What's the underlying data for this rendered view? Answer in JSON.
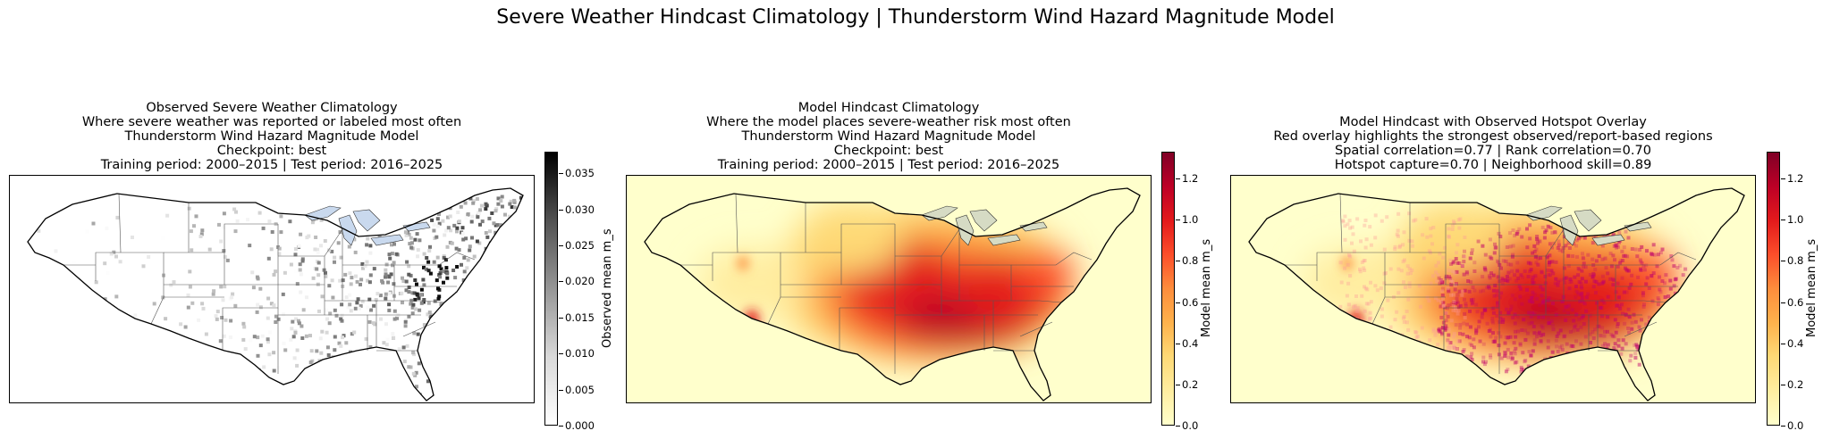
{
  "suptitle": "Severe Weather Hindcast Climatology | Thunderstorm Wind Hazard Magnitude Model",
  "panels": [
    {
      "title_lines": [
        "Observed Severe Weather Climatology",
        "Where severe weather was reported or labeled most often",
        "Thunderstorm Wind Hazard Magnitude Model",
        "Checkpoint: best",
        "Training period: 2000–2015 | Test period: 2016–2025"
      ],
      "colorbar": {
        "label": "Observed mean m_s",
        "cmap": "Greys",
        "range": [
          0.0,
          0.038
        ],
        "ticks": [
          "0.000",
          "0.005",
          "0.010",
          "0.015",
          "0.020",
          "0.025",
          "0.030",
          "0.035"
        ]
      }
    },
    {
      "title_lines": [
        "Model Hindcast Climatology",
        "Where the model places severe-weather risk most often",
        "Thunderstorm Wind Hazard Magnitude Model",
        "Checkpoint: best",
        "Training period: 2000–2015 | Test period: 2016–2025"
      ],
      "colorbar": {
        "label": "Model mean m_s",
        "cmap": "YlOrRd",
        "range": [
          0.0,
          1.33
        ],
        "ticks": [
          "0.0",
          "0.2",
          "0.4",
          "0.6",
          "0.8",
          "1.0",
          "1.2"
        ]
      }
    },
    {
      "title_lines": [
        "Model Hindcast with Observed Hotspot Overlay",
        "Red overlay highlights the strongest observed/report-based regions",
        "Spatial correlation=0.77 | Rank correlation=0.70",
        "Hotspot capture=0.70 | Neighborhood skill=0.89"
      ],
      "colorbar": {
        "label": "Model mean m_s",
        "cmap": "YlOrRd",
        "range": [
          0.0,
          1.33
        ],
        "ticks": [
          "0.0",
          "0.2",
          "0.4",
          "0.6",
          "0.8",
          "1.0",
          "1.2"
        ]
      }
    }
  ],
  "colors": {
    "lakes": "#c9d9ee",
    "borders": "#555555",
    "coast": "#000000",
    "overlay": "#c0006a"
  }
}
